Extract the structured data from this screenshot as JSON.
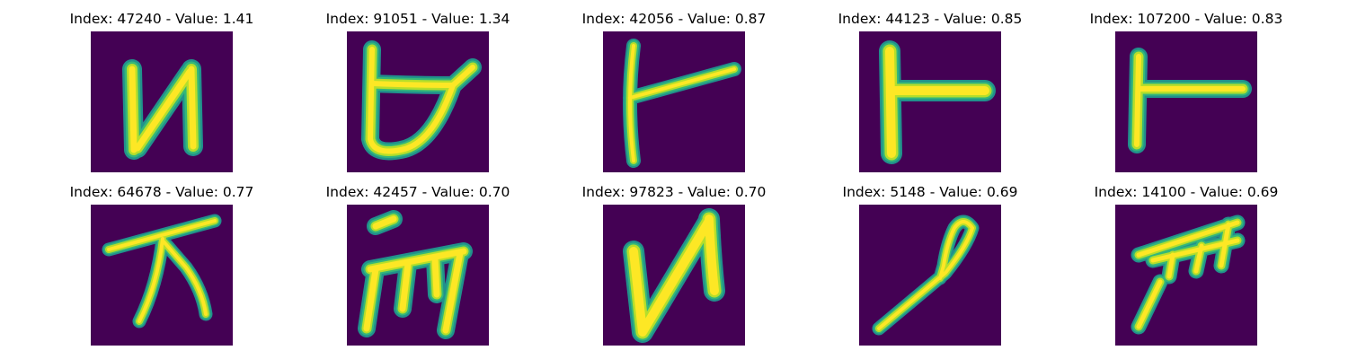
{
  "colors": {
    "background": "#440154",
    "glyph_core": "#fde725",
    "glyph_mid": "#b5de2b",
    "glyph_edge": "#35b779",
    "glyph_fringe": "#21918c"
  },
  "panels": [
    {
      "title": "Index: 47240 - Value: 1.41",
      "glyph": "glyph-47240"
    },
    {
      "title": "Index: 91051 - Value: 1.34",
      "glyph": "glyph-91051"
    },
    {
      "title": "Index: 42056 - Value: 0.87",
      "glyph": "glyph-42056"
    },
    {
      "title": "Index: 44123 - Value: 0.85",
      "glyph": "glyph-44123"
    },
    {
      "title": "Index: 107200 - Value: 0.83",
      "glyph": "glyph-107200"
    },
    {
      "title": "Index: 64678 - Value: 0.77",
      "glyph": "glyph-64678"
    },
    {
      "title": "Index: 42457 - Value: 0.70",
      "glyph": "glyph-42457"
    },
    {
      "title": "Index: 97823 - Value: 0.70",
      "glyph": "glyph-97823"
    },
    {
      "title": "Index: 5148 - Value: 0.69",
      "glyph": "glyph-5148"
    },
    {
      "title": "Index: 14100 - Value: 0.69",
      "glyph": "glyph-14100"
    }
  ]
}
